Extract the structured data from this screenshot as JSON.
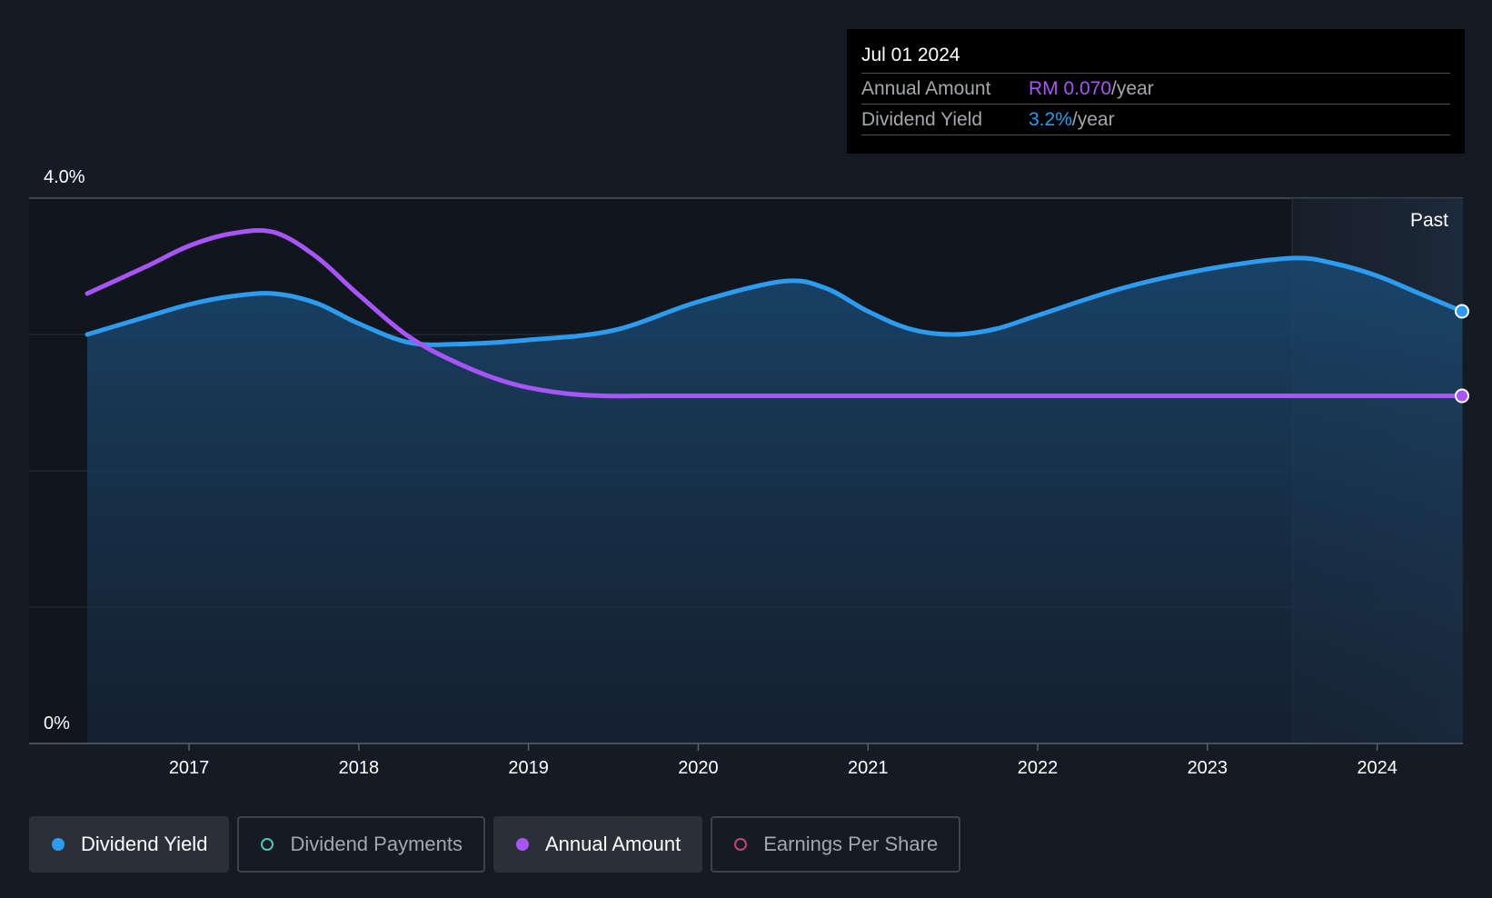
{
  "chart_data": {
    "type": "line",
    "x_domain": [
      2016.4,
      2024.5
    ],
    "ylim": [
      0,
      4.0
    ],
    "y_tick_labels": [
      "0%",
      "4.0%"
    ],
    "x_ticks": [
      2017,
      2018,
      2019,
      2020,
      2021,
      2022,
      2023,
      2024
    ],
    "x_tick_labels": [
      "2017",
      "2018",
      "2019",
      "2020",
      "2021",
      "2022",
      "2023",
      "2024"
    ],
    "grid": true,
    "past_label": "Past",
    "past_start": 2023.5,
    "series": [
      {
        "name": "Dividend Yield",
        "color": "#2d9cf0",
        "area": true,
        "x": [
          2016.4,
          2016.75,
          2017.0,
          2017.25,
          2017.5,
          2017.75,
          2018.0,
          2018.3,
          2018.6,
          2019.0,
          2019.5,
          2020.0,
          2020.5,
          2020.75,
          2021.0,
          2021.25,
          2021.5,
          2021.75,
          2022.0,
          2022.5,
          2023.0,
          2023.5,
          2023.75,
          2024.0,
          2024.25,
          2024.5
        ],
        "y": [
          3.0,
          3.13,
          3.22,
          3.28,
          3.3,
          3.23,
          3.08,
          2.94,
          2.93,
          2.96,
          3.03,
          3.24,
          3.39,
          3.34,
          3.17,
          3.04,
          3.0,
          3.04,
          3.14,
          3.34,
          3.48,
          3.56,
          3.52,
          3.43,
          3.3,
          3.17
        ]
      },
      {
        "name": "Annual Amount",
        "color": "#a855f7",
        "area": false,
        "x": [
          2016.4,
          2016.75,
          2017.0,
          2017.25,
          2017.5,
          2017.75,
          2018.0,
          2018.3,
          2018.6,
          2018.9,
          2019.2,
          2019.45,
          2019.7,
          2020.0,
          2021.0,
          2022.0,
          2023.0,
          2024.0,
          2024.5
        ],
        "y": [
          3.3,
          3.5,
          3.65,
          3.74,
          3.75,
          3.57,
          3.29,
          2.98,
          2.78,
          2.64,
          2.57,
          2.55,
          2.55,
          2.55,
          2.55,
          2.55,
          2.55,
          2.55,
          2.55
        ]
      }
    ]
  },
  "tooltip": {
    "date": "Jul 01 2024",
    "annual_amount_label": "Annual Amount",
    "annual_amount_value": "RM 0.070",
    "annual_amount_unit": "/year",
    "dividend_yield_label": "Dividend Yield",
    "dividend_yield_value": "3.2%",
    "dividend_yield_unit": "/year"
  },
  "legend": [
    {
      "label": "Dividend Yield",
      "color": "#2d9cf0",
      "active": true,
      "filled": true
    },
    {
      "label": "Dividend Payments",
      "color": "#4fc3b8",
      "active": false,
      "filled": false
    },
    {
      "label": "Annual Amount",
      "color": "#a855f7",
      "active": true,
      "filled": true
    },
    {
      "label": "Earnings Per Share",
      "color": "#c2447a",
      "active": false,
      "filled": false
    }
  ]
}
